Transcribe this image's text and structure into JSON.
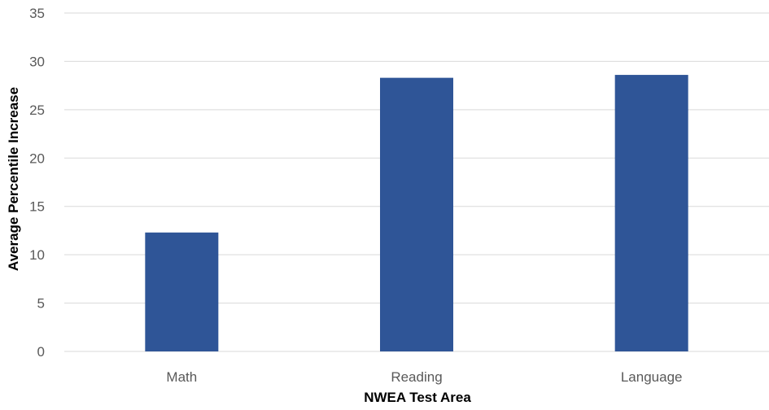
{
  "chart_data": {
    "type": "bar",
    "title": "",
    "xlabel": "NWEA Test Area",
    "ylabel": "Average Percentile Increase",
    "categories": [
      "Math",
      "Reading",
      "Language"
    ],
    "values": [
      12.3,
      28.3,
      28.6
    ],
    "ylim": [
      0,
      35
    ],
    "yticks": [
      0,
      5,
      10,
      15,
      20,
      25,
      30,
      35
    ],
    "grid": true,
    "legend": "none",
    "colors": {
      "bar": "#2f5597",
      "grid": "#d9d9d9",
      "tick_text": "#595959",
      "axis_title": "#000000"
    }
  }
}
